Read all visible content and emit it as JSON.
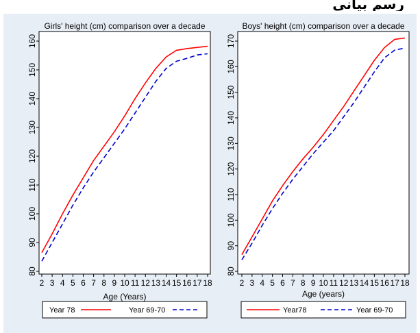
{
  "top_text": "رسم بياني",
  "chart_data": [
    {
      "type": "line",
      "title": "Girls' height (cm) comparison over a decade",
      "xlabel": "Age (Years)",
      "ylabel": "",
      "xlim": [
        2,
        18
      ],
      "ylim": [
        80,
        160
      ],
      "xticks": [
        "2",
        "3",
        "4",
        "5",
        "6",
        "7",
        "8",
        "9",
        "10",
        "11",
        "12",
        "13",
        "14",
        "15",
        "16",
        "17",
        "18"
      ],
      "yticks": [
        "80",
        "90",
        "100",
        "110",
        "120",
        "130",
        "140",
        "150",
        "160"
      ],
      "grid": false,
      "legend_position": "bottom",
      "legend": [
        "Year 78",
        "Year 69-70"
      ],
      "x": [
        2,
        3,
        4,
        5,
        6,
        7,
        8,
        9,
        10,
        11,
        12,
        13,
        14,
        15,
        16,
        17,
        18
      ],
      "series": [
        {
          "name": "Year 78",
          "color": "#ff0000",
          "style": "solid",
          "values": [
            86.5,
            93.0,
            100.0,
            106.5,
            112.5,
            118.5,
            123.5,
            128.5,
            134.0,
            140.0,
            145.5,
            150.5,
            154.5,
            156.8,
            157.4,
            157.8,
            158.2
          ]
        },
        {
          "name": "Year 69-70",
          "color": "#0000cc",
          "style": "dashed",
          "values": [
            83.5,
            90.0,
            96.5,
            103.0,
            109.0,
            114.5,
            119.5,
            124.5,
            129.5,
            135.0,
            140.5,
            146.0,
            150.5,
            153.0,
            154.0,
            155.2,
            155.6
          ]
        }
      ]
    },
    {
      "type": "line",
      "title": "Boys' height (cm) comparison over a decade",
      "xlabel": "Age (years)",
      "ylabel": "",
      "xlim": [
        2,
        18
      ],
      "ylim": [
        80,
        170
      ],
      "xticks": [
        "2",
        "3",
        "4",
        "5",
        "6",
        "7",
        "8",
        "9",
        "10",
        "11",
        "12",
        "13",
        "14",
        "15",
        "16",
        "17",
        "18"
      ],
      "yticks": [
        "80",
        "90",
        "100",
        "110",
        "120",
        "130",
        "140",
        "150",
        "160",
        "170"
      ],
      "grid": false,
      "legend_position": "bottom",
      "legend": [
        "Year78",
        "Year 69-70"
      ],
      "x": [
        2,
        3,
        4,
        5,
        6,
        7,
        8,
        9,
        10,
        11,
        12,
        13,
        14,
        15,
        16,
        17,
        18
      ],
      "series": [
        {
          "name": "Year78",
          "color": "#ff0000",
          "style": "solid",
          "values": [
            86.5,
            93.5,
            100.5,
            107.5,
            113.5,
            119.0,
            124.0,
            128.5,
            133.5,
            139.0,
            144.5,
            150.5,
            156.5,
            162.5,
            167.5,
            170.7,
            171.2
          ]
        },
        {
          "name": "Year 69-70",
          "color": "#0000cc",
          "style": "dashed",
          "values": [
            84.5,
            91.0,
            98.0,
            104.5,
            110.5,
            116.0,
            121.0,
            126.0,
            130.5,
            135.0,
            140.5,
            146.0,
            152.0,
            158.0,
            163.5,
            166.5,
            167.3
          ]
        }
      ]
    }
  ]
}
